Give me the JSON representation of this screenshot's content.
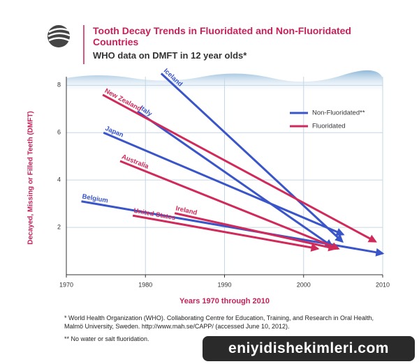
{
  "chart_data": {
    "type": "arrow",
    "title": "Tooth Decay Trends in Fluoridated and Non-Fluoridated Countries",
    "subtitle": "WHO data on DMFT in 12 year olds*",
    "y_label": "Decayed, Missing or Filled Teeth (DMFT)",
    "x_label": "Years 1970 through 2010",
    "xlim": [
      1970,
      2010
    ],
    "xticks": [
      1970,
      1980,
      1990,
      2000,
      2010
    ],
    "ylim": [
      0,
      8.6
    ],
    "yticks": [
      2,
      4,
      6,
      8
    ],
    "grid": true,
    "series": [
      {
        "name": "Non-Fluoridated**",
        "color": "#3a55c8",
        "lines": [
          {
            "label": "Iceland",
            "x": [
              1982,
              2004.9
            ],
            "values": [
              8.5,
              1.4
            ]
          },
          {
            "label": "Italy",
            "x": [
              1979,
              2003.6
            ],
            "values": [
              6.9,
              1.2
            ]
          },
          {
            "label": "Japan",
            "x": [
              1974.7,
              2005
            ],
            "values": [
              6.0,
              1.7
            ]
          },
          {
            "label": "Belgium",
            "x": [
              1971.9,
              2010
            ],
            "values": [
              3.1,
              0.9
            ]
          }
        ]
      },
      {
        "name": "Fluoridated",
        "color": "#d02a5a",
        "lines": [
          {
            "label": "New Zealand",
            "x": [
              1974.6,
              2009.1
            ],
            "values": [
              7.6,
              1.4
            ]
          },
          {
            "label": "Australia",
            "x": [
              1976.8,
              2004.4
            ],
            "values": [
              4.8,
              1.1
            ]
          },
          {
            "label": "Ireland",
            "x": [
              1983.7,
              2004
            ],
            "values": [
              2.6,
              1.1
            ]
          },
          {
            "label": "United States",
            "x": [
              1978.4,
              2001.8
            ],
            "values": [
              2.5,
              1.1
            ]
          }
        ]
      }
    ]
  },
  "footnotes": [
    "* World Health Organization (WHO). Collaborating Centre for Education, Training, and Research in Oral Health, Malmö University, Sweden. http://www.mah.se/CAPP/ (accessed June 10, 2012).",
    "** No water or salt fluoridation."
  ],
  "watermark": "eniyidishekimleri.com"
}
